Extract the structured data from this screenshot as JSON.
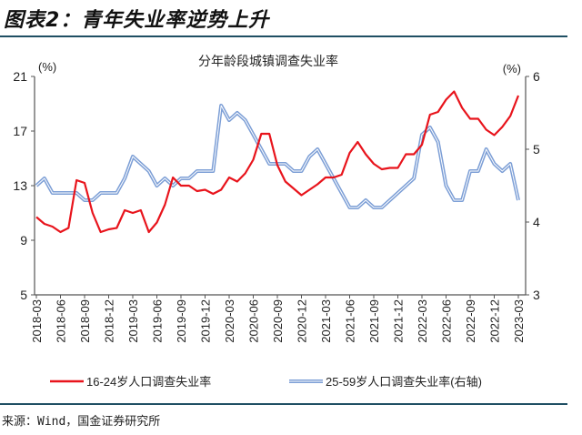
{
  "figure_title": "图表2：青年失业率逆势上升",
  "source": "来源：Wind，国金证券研究所",
  "colors": {
    "series1": "#e8141c",
    "series2": "#7d9fd6",
    "rule": "#1f4f63"
  },
  "chart_data": {
    "type": "line",
    "title": "分年龄段城镇调查失业率",
    "ylabel_left": "(%)",
    "ylabel_right": "(%)",
    "ylim_left": [
      5,
      21
    ],
    "yticks_left": [
      "5",
      "9",
      "13",
      "17",
      "21"
    ],
    "ylim_right": [
      3,
      6
    ],
    "yticks_right": [
      "3",
      "4",
      "5",
      "6"
    ],
    "x_start": "2018-03",
    "x_end": "2023-03",
    "xtick_labels": [
      "2018-03",
      "2018-06",
      "2018-09",
      "2018-12",
      "2019-03",
      "2019-06",
      "2019-09",
      "2019-12",
      "2020-03",
      "2020-06",
      "2020-09",
      "2020-12",
      "2021-03",
      "2021-06",
      "2021-09",
      "2021-12",
      "2022-03",
      "2022-06",
      "2022-09",
      "2022-12",
      "2023-03"
    ],
    "grid": false,
    "legend_position": "bottom",
    "series": [
      {
        "name": "16-24岁人口调查失业率",
        "axis": "left",
        "values": [
          10.7,
          10.2,
          10.0,
          9.6,
          9.9,
          13.4,
          13.2,
          11.0,
          9.6,
          9.8,
          9.9,
          11.2,
          11.0,
          11.2,
          9.6,
          10.3,
          11.6,
          13.6,
          13.0,
          13.0,
          12.6,
          12.7,
          12.4,
          12.7,
          13.6,
          13.3,
          13.9,
          14.9,
          16.8,
          16.8,
          14.5,
          13.3,
          12.8,
          12.3,
          12.7,
          13.1,
          13.6,
          13.6,
          13.8,
          15.4,
          16.2,
          15.3,
          14.6,
          14.2,
          14.3,
          14.3,
          15.3,
          15.3,
          16.0,
          18.2,
          18.4,
          19.3,
          19.9,
          18.7,
          17.9,
          17.9,
          17.1,
          16.7,
          17.3,
          18.1,
          19.6
        ]
      },
      {
        "name": "25-59岁人口调查失业率(右轴)",
        "axis": "right",
        "values": [
          4.5,
          4.6,
          4.4,
          4.4,
          4.4,
          4.4,
          4.3,
          4.3,
          4.4,
          4.4,
          4.4,
          4.6,
          4.9,
          4.8,
          4.7,
          4.5,
          4.6,
          4.5,
          4.6,
          4.6,
          4.7,
          4.7,
          4.7,
          5.6,
          5.4,
          5.5,
          5.4,
          5.2,
          5.0,
          4.8,
          4.8,
          4.8,
          4.7,
          4.7,
          4.9,
          5.0,
          4.8,
          4.6,
          4.4,
          4.2,
          4.2,
          4.3,
          4.2,
          4.2,
          4.3,
          4.4,
          4.5,
          4.6,
          5.2,
          5.3,
          5.1,
          4.5,
          4.3,
          4.3,
          4.7,
          4.7,
          5.0,
          4.8,
          4.7,
          4.8,
          4.3
        ]
      }
    ]
  }
}
